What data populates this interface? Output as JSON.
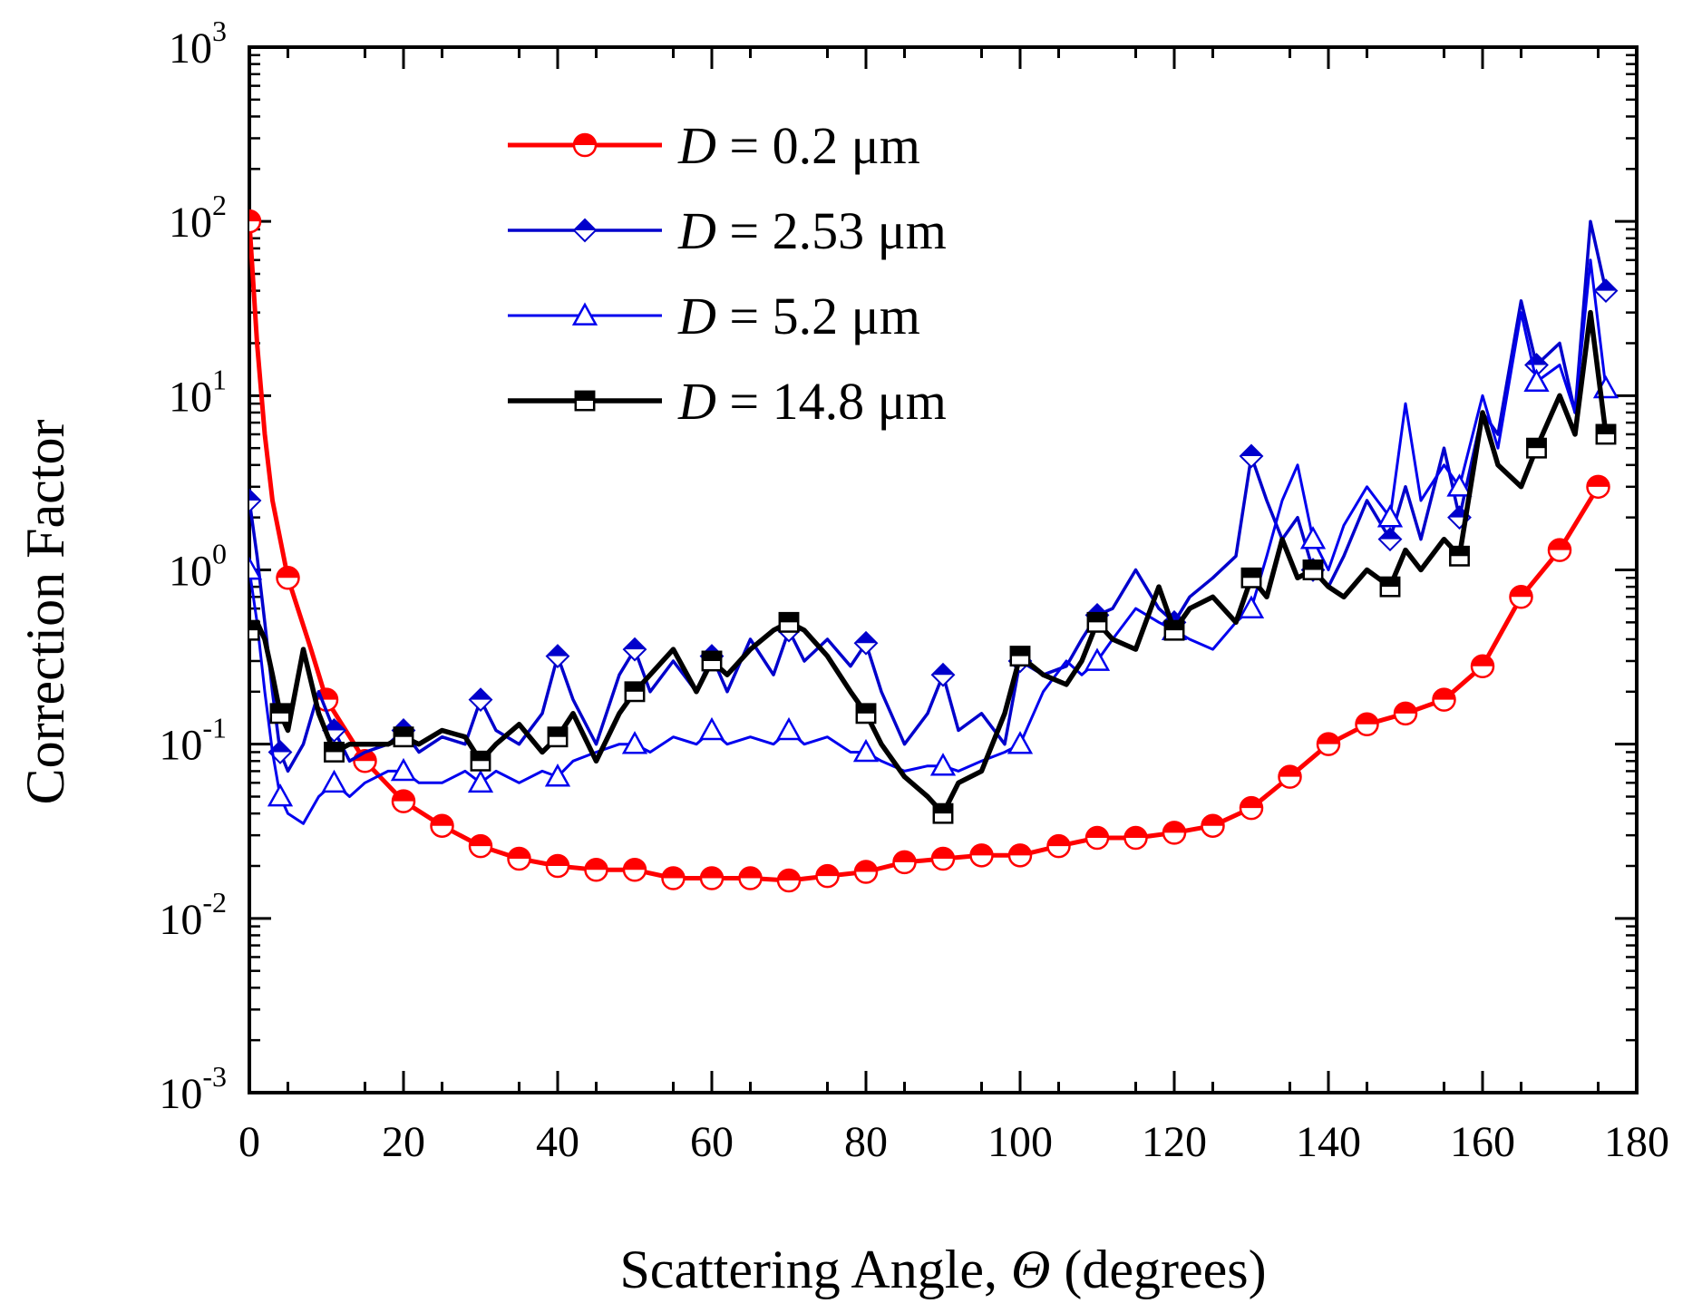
{
  "chart_data": {
    "type": "line",
    "xlabel": "Scattering Angle, Θ (degrees)",
    "xlabel_parts": {
      "before": "Scattering Angle, ",
      "symbol": "Θ",
      "after": " (degrees)"
    },
    "ylabel": "Correction Factor",
    "xlim": [
      0,
      180
    ],
    "ylim": [
      0.001,
      1000
    ],
    "yscale": "log",
    "x_ticks": [
      0,
      20,
      40,
      60,
      80,
      100,
      120,
      140,
      160,
      180
    ],
    "x_tick_labels": [
      "0",
      "20",
      "40",
      "60",
      "80",
      "100",
      "120",
      "140",
      "160",
      "180"
    ],
    "y_ticks": [
      0.001,
      0.01,
      0.1,
      1,
      10,
      100,
      1000
    ],
    "y_tick_labels": [
      {
        "base": "10",
        "exp": "-3"
      },
      {
        "base": "10",
        "exp": "-2"
      },
      {
        "base": "10",
        "exp": "-1"
      },
      {
        "base": "10",
        "exp": "0"
      },
      {
        "base": "10",
        "exp": "1"
      },
      {
        "base": "10",
        "exp": "2"
      },
      {
        "base": "10",
        "exp": "3"
      }
    ],
    "grid": false,
    "legend_position": "top-center",
    "series": [
      {
        "name": "D = 0.2 μm",
        "legend_var": "D",
        "legend_rest": " = 0.2 μm",
        "color": "#ff0000",
        "marker": "circle",
        "x": [
          0,
          1,
          2,
          3,
          5,
          8,
          10,
          15,
          20,
          25,
          30,
          35,
          40,
          45,
          50,
          55,
          60,
          65,
          70,
          75,
          80,
          85,
          90,
          95,
          100,
          105,
          110,
          115,
          120,
          125,
          130,
          135,
          140,
          145,
          150,
          155,
          160,
          165,
          170,
          175
        ],
        "y": [
          100,
          20,
          6,
          2.5,
          0.9,
          0.35,
          0.18,
          0.08,
          0.047,
          0.034,
          0.026,
          0.022,
          0.02,
          0.019,
          0.019,
          0.017,
          0.017,
          0.017,
          0.0165,
          0.0175,
          0.0185,
          0.021,
          0.022,
          0.023,
          0.023,
          0.026,
          0.029,
          0.029,
          0.031,
          0.034,
          0.043,
          0.065,
          0.1,
          0.13,
          0.15,
          0.18,
          0.28,
          0.7,
          1.3,
          3.0
        ]
      },
      {
        "name": "D = 2.53 μm",
        "legend_var": "D",
        "legend_rest": " = 2.53 μm",
        "color": "#0000cc",
        "marker": "diamond",
        "x": [
          0,
          1,
          2,
          3,
          4,
          5,
          7,
          9,
          11,
          13,
          15,
          18,
          20,
          22,
          25,
          28,
          30,
          32,
          35,
          38,
          40,
          42,
          45,
          48,
          50,
          52,
          55,
          58,
          60,
          62,
          65,
          68,
          70,
          72,
          75,
          78,
          80,
          82,
          85,
          88,
          90,
          92,
          95,
          98,
          100,
          103,
          106,
          108,
          110,
          112,
          115,
          118,
          120,
          122,
          125,
          128,
          130,
          132,
          134,
          136,
          138,
          140,
          142,
          145,
          148,
          150,
          152,
          155,
          157,
          160,
          162,
          165,
          167,
          170,
          172,
          174,
          176
        ],
        "y": [
          2.5,
          1.2,
          0.5,
          0.2,
          0.09,
          0.07,
          0.1,
          0.2,
          0.12,
          0.08,
          0.09,
          0.1,
          0.12,
          0.09,
          0.11,
          0.1,
          0.18,
          0.12,
          0.1,
          0.15,
          0.32,
          0.18,
          0.1,
          0.25,
          0.35,
          0.2,
          0.3,
          0.2,
          0.32,
          0.2,
          0.4,
          0.25,
          0.45,
          0.3,
          0.4,
          0.28,
          0.38,
          0.2,
          0.1,
          0.15,
          0.25,
          0.12,
          0.15,
          0.1,
          0.3,
          0.25,
          0.28,
          0.4,
          0.55,
          0.6,
          1.0,
          0.6,
          0.5,
          0.7,
          0.9,
          1.2,
          4.5,
          2.5,
          1.5,
          2.0,
          1.0,
          0.8,
          1.2,
          2.5,
          1.5,
          3.0,
          1.5,
          5.0,
          2.0,
          8.0,
          6.0,
          35,
          15,
          20,
          8,
          100,
          40
        ]
      },
      {
        "name": "D = 5.2 μm",
        "legend_var": "D",
        "legend_rest": " = 5.2 μm",
        "color": "#0000ee",
        "marker": "triangle",
        "x": [
          0,
          1,
          2,
          3,
          4,
          5,
          7,
          9,
          11,
          13,
          15,
          18,
          20,
          22,
          25,
          28,
          30,
          32,
          35,
          38,
          40,
          42,
          45,
          48,
          50,
          52,
          55,
          58,
          60,
          62,
          65,
          68,
          70,
          72,
          75,
          78,
          80,
          82,
          85,
          88,
          90,
          92,
          95,
          98,
          100,
          103,
          106,
          108,
          110,
          112,
          115,
          118,
          120,
          122,
          125,
          128,
          130,
          132,
          134,
          136,
          138,
          140,
          142,
          145,
          148,
          150,
          152,
          155,
          157,
          160,
          162,
          165,
          167,
          170,
          172,
          174,
          176
        ],
        "y": [
          1.0,
          0.5,
          0.2,
          0.09,
          0.05,
          0.04,
          0.035,
          0.05,
          0.06,
          0.05,
          0.06,
          0.07,
          0.07,
          0.06,
          0.06,
          0.07,
          0.06,
          0.07,
          0.06,
          0.07,
          0.065,
          0.08,
          0.09,
          0.1,
          0.1,
          0.09,
          0.11,
          0.1,
          0.12,
          0.1,
          0.11,
          0.1,
          0.12,
          0.1,
          0.11,
          0.09,
          0.09,
          0.08,
          0.07,
          0.075,
          0.075,
          0.07,
          0.08,
          0.09,
          0.1,
          0.2,
          0.3,
          0.25,
          0.3,
          0.4,
          0.6,
          0.5,
          0.45,
          0.4,
          0.35,
          0.5,
          0.6,
          1.2,
          2.5,
          4.0,
          1.5,
          1.0,
          1.8,
          3.0,
          2.0,
          9.0,
          2.5,
          4.0,
          3.0,
          10,
          5.0,
          30,
          12,
          15,
          8,
          60,
          11
        ]
      },
      {
        "name": "D = 14.8 μm",
        "legend_var": "D",
        "legend_rest": " = 14.8 μm",
        "color": "#000000",
        "marker": "square",
        "x": [
          0,
          1,
          2,
          3,
          4,
          5,
          7,
          9,
          11,
          13,
          15,
          18,
          20,
          22,
          25,
          28,
          30,
          32,
          35,
          38,
          40,
          42,
          45,
          48,
          50,
          52,
          55,
          58,
          60,
          62,
          65,
          68,
          70,
          72,
          75,
          78,
          80,
          82,
          85,
          88,
          90,
          92,
          95,
          98,
          100,
          103,
          106,
          108,
          110,
          112,
          115,
          118,
          120,
          122,
          125,
          128,
          130,
          132,
          134,
          136,
          138,
          140,
          142,
          145,
          148,
          150,
          152,
          155,
          157,
          160,
          162,
          165,
          167,
          170,
          172,
          174,
          176
        ],
        "y": [
          0.45,
          0.5,
          0.4,
          0.25,
          0.15,
          0.12,
          0.35,
          0.15,
          0.09,
          0.1,
          0.1,
          0.1,
          0.11,
          0.1,
          0.12,
          0.11,
          0.08,
          0.1,
          0.13,
          0.09,
          0.11,
          0.15,
          0.08,
          0.15,
          0.2,
          0.25,
          0.35,
          0.2,
          0.3,
          0.25,
          0.35,
          0.45,
          0.5,
          0.45,
          0.32,
          0.2,
          0.15,
          0.1,
          0.065,
          0.05,
          0.04,
          0.06,
          0.07,
          0.15,
          0.32,
          0.25,
          0.22,
          0.3,
          0.5,
          0.4,
          0.35,
          0.8,
          0.45,
          0.6,
          0.7,
          0.5,
          0.9,
          0.7,
          1.5,
          0.9,
          1.0,
          0.8,
          0.7,
          1.0,
          0.8,
          1.3,
          1.0,
          1.5,
          1.2,
          8.0,
          4.0,
          3.0,
          5.0,
          10,
          6.0,
          30,
          6.0
        ]
      }
    ]
  }
}
